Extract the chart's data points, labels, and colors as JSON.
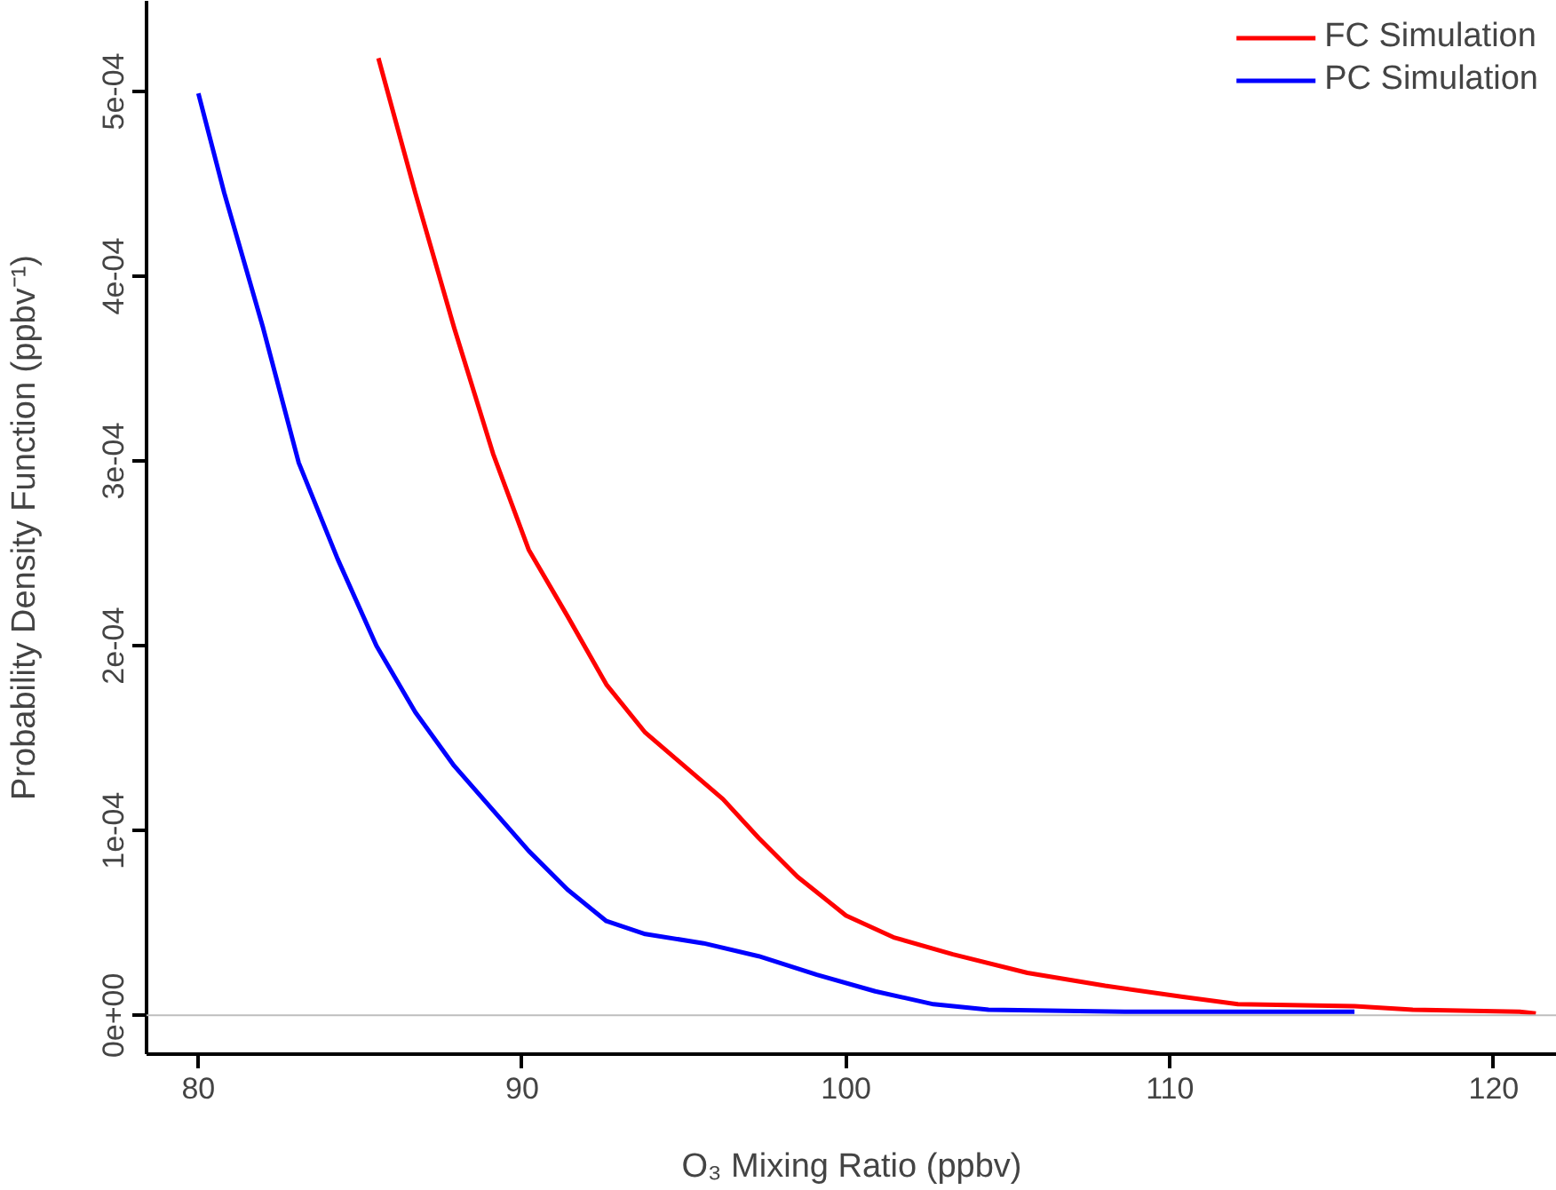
{
  "chart_data": {
    "type": "line",
    "xlabel": "O₃ Mixing Ratio (ppbv)",
    "ylabel": "Probability Density Function (ppbv⁻¹)",
    "xlim": [
      78.4,
      121.95
    ],
    "ylim": [
      -2.1e-05,
      0.000549
    ],
    "xticks": [
      80,
      90,
      100,
      110,
      120
    ],
    "yticks": [
      {
        "value": 0,
        "label": "0e+00"
      },
      {
        "value": 0.0001,
        "label": "1e-04"
      },
      {
        "value": 0.0002,
        "label": "2e-04"
      },
      {
        "value": 0.0003,
        "label": "3e-04"
      },
      {
        "value": 0.0004,
        "label": "4e-04"
      },
      {
        "value": 0.0005,
        "label": "5e-04"
      }
    ],
    "grid": false,
    "legend": "top right",
    "line_style": "solid",
    "ref_lines": [
      {
        "axis": "y",
        "value": 0,
        "color": "#bebebe"
      }
    ],
    "series": [
      {
        "name": "FC Simulation",
        "color": "#ff0000",
        "x": [
          85.56,
          86.7,
          87.9,
          89.1,
          90.2,
          91.4,
          92.6,
          93.8,
          95.0,
          96.2,
          97.3,
          98.5,
          100,
          101.5,
          103.3,
          105.6,
          108,
          110.4,
          112.1,
          115.7,
          117.5,
          120.8,
          121.3
        ],
        "values": [
          0.000518,
          0.000445,
          0.000372,
          0.000304,
          0.000252,
          0.000216,
          0.000179,
          0.000153,
          0.000135,
          0.000117,
          9.6e-05,
          7.5e-05,
          5.4e-05,
          4.2e-05,
          3.3e-05,
          2.3e-05,
          1.6e-05,
          1e-05,
          6e-06,
          5e-06,
          3e-06,
          2e-06,
          1e-06
        ]
      },
      {
        "name": "PC Simulation",
        "color": "#0000ff",
        "x": [
          80,
          80.8,
          82.0,
          83.1,
          84.3,
          85.5,
          86.7,
          87.9,
          89.1,
          90.2,
          91.4,
          92.6,
          93.8,
          95.6,
          97.3,
          99.1,
          100.9,
          102.7,
          104.4,
          108.6,
          115.7
        ],
        "values": [
          0.000499,
          0.000445,
          0.000372,
          0.000299,
          0.000247,
          0.0002,
          0.000164,
          0.000135,
          0.000111,
          8.9e-05,
          6.8e-05,
          5.1e-05,
          4.4e-05,
          3.9e-05,
          3.2e-05,
          2.2e-05,
          1.3e-05,
          6e-06,
          3e-06,
          2e-06,
          2e-06
        ]
      }
    ]
  }
}
